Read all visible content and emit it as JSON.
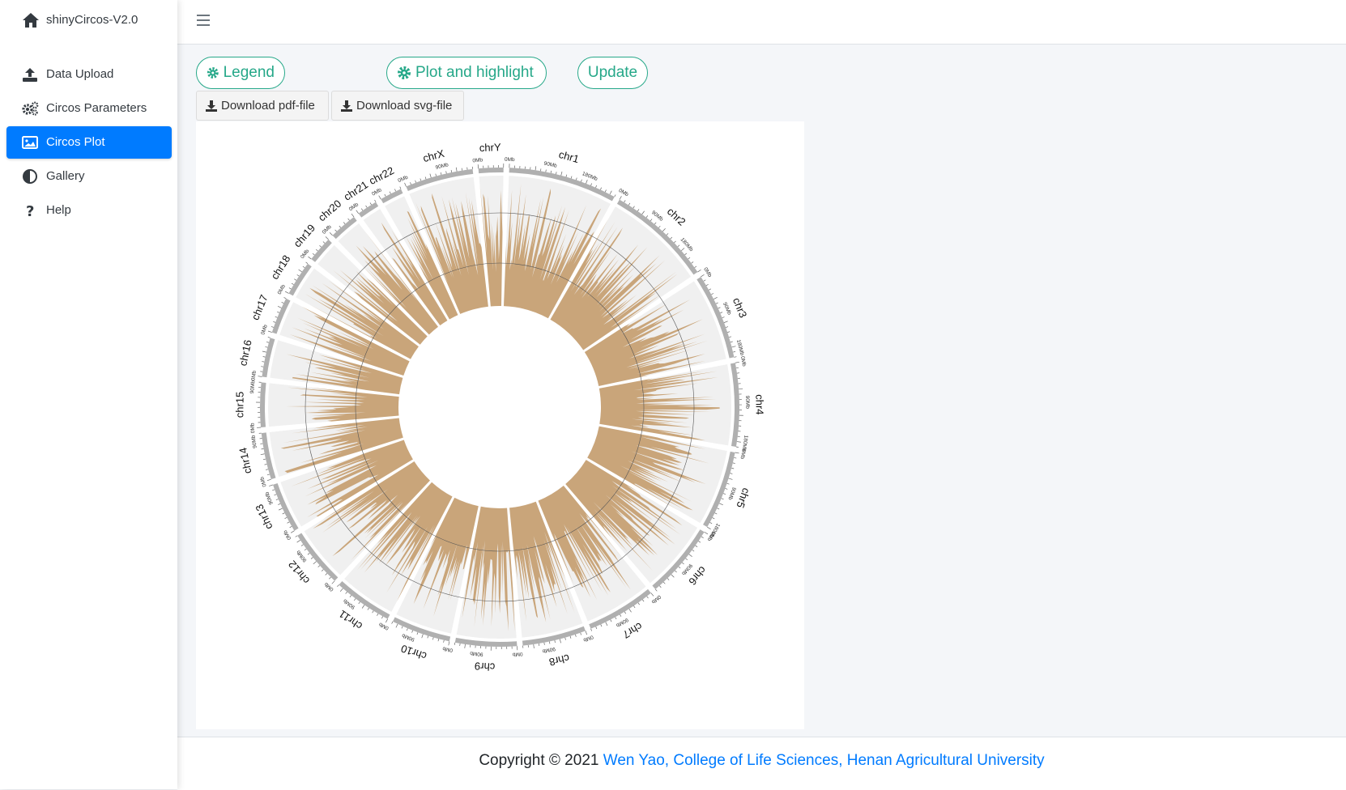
{
  "app": {
    "title": "shinyCircos-V2.0"
  },
  "sidebar": {
    "items": [
      {
        "label": "Data Upload",
        "icon": "upload-icon"
      },
      {
        "label": "Circos Parameters",
        "icon": "gears-icon"
      },
      {
        "label": "Circos Plot",
        "icon": "image-icon",
        "active": true
      },
      {
        "label": "Gallery",
        "icon": "adjust-icon"
      },
      {
        "label": "Help",
        "icon": "question-icon"
      }
    ]
  },
  "toolbar": {
    "legend_label": "Legend",
    "plot_highlight_label": "Plot and highlight",
    "update_label": "Update",
    "download_pdf_label": "Download pdf-file",
    "download_svg_label": "Download svg-file"
  },
  "plot": {
    "chromosomes": [
      "chr1",
      "chr2",
      "chr3",
      "chr4",
      "chr5",
      "chr6",
      "chr7",
      "chr8",
      "chr9",
      "chr10",
      "chr11",
      "chr12",
      "chr13",
      "chr14",
      "chr15",
      "chr16",
      "chr17",
      "chr18",
      "chr19",
      "chr20",
      "chr21",
      "chr22",
      "chrX",
      "chrY"
    ],
    "tick_labels": [
      "0Mb",
      "90Mb",
      "180Mb"
    ],
    "colors": {
      "track_fill": "#c9a57a",
      "track_bg": "#f0f0f0",
      "ideogram": "#b0b0b0",
      "accent": "#26a889",
      "active_nav": "#007bff"
    }
  },
  "footer": {
    "prefix": "Copyright © 2021 ",
    "link_text": "Wen Yao, College of Life Sciences, Henan Agricultural University"
  }
}
